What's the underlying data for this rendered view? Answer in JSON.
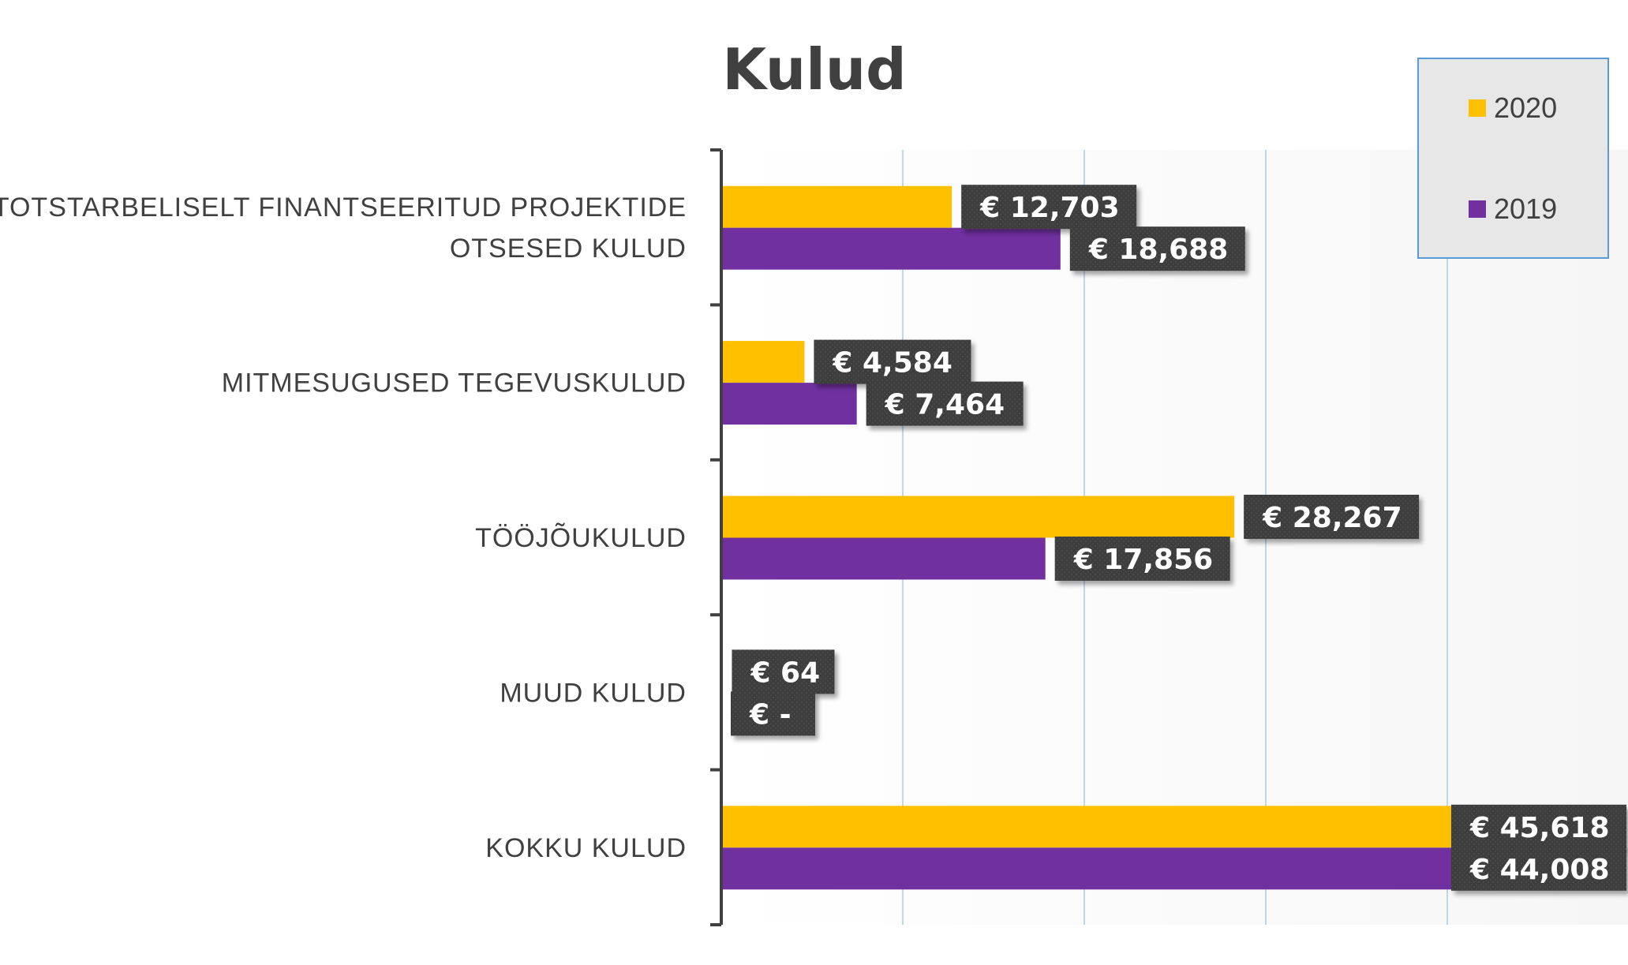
{
  "chart_data": {
    "type": "bar",
    "orientation": "horizontal",
    "title": "Kulud",
    "categories": [
      "SIHTOTSTARBELISELT FINANTSEERITUD PROJEKTIDE OTSESED KULUD",
      "MITMESUGUSED TEGEVUSKULUD",
      "TÖÖJÕUKULUD",
      "MUUD KULUD",
      "KOKKU KULUD"
    ],
    "category_lines": [
      [
        "SIHTOTSTARBELISELT FINANTSEERITUD PROJEKTIDE",
        "OTSESED KULUD"
      ],
      [
        "MITMESUGUSED TEGEVUSKULUD"
      ],
      [
        "TÖÖJÕUKULUD"
      ],
      [
        "MUUD KULUD"
      ],
      [
        "KOKKU KULUD"
      ]
    ],
    "series": [
      {
        "name": "2020",
        "color": "#FFC000",
        "values": [
          12703,
          4584,
          28267,
          64,
          45618
        ],
        "labels": [
          "€ 12,703",
          "€ 4,584",
          "€ 28,267",
          "€ 64",
          "€ 45,618"
        ]
      },
      {
        "name": "2019",
        "color": "#7030A0",
        "values": [
          18688,
          7464,
          17856,
          0,
          44008
        ],
        "labels": [
          "€ 18,688",
          "€ 7,464",
          "€ 17,856",
          "€ -",
          "€ 44,008"
        ]
      }
    ],
    "xlim": [
      0,
      50000
    ],
    "grid_step": 10000,
    "grid": true,
    "legend_position": "top-right"
  }
}
